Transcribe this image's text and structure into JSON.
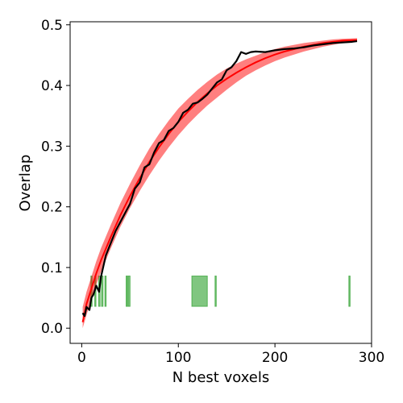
{
  "chart_data": {
    "type": "line",
    "title": "",
    "xlabel": "N best voxels",
    "ylabel": "Overlap",
    "xlim": [
      -12,
      300
    ],
    "ylim": [
      -0.025,
      0.505
    ],
    "xticks": [
      0,
      100,
      200,
      300
    ],
    "yticks": [
      0.0,
      0.1,
      0.2,
      0.3,
      0.4,
      0.5
    ],
    "xtick_labels": [
      "0",
      "100",
      "200",
      "300"
    ],
    "ytick_labels": [
      "0.0",
      "0.1",
      "0.2",
      "0.3",
      "0.4",
      "0.5"
    ],
    "grid": false,
    "legend": null,
    "series": [
      {
        "kind": "band",
        "color": "#ff0000",
        "x": [
          1,
          5,
          10,
          15,
          20,
          30,
          40,
          50,
          60,
          70,
          80,
          90,
          100,
          110,
          120,
          130,
          140,
          150,
          160,
          170,
          180,
          190,
          200,
          210,
          220,
          230,
          240,
          250,
          260,
          270,
          285
        ],
        "mean": [
          0.01,
          0.04,
          0.065,
          0.09,
          0.112,
          0.15,
          0.186,
          0.218,
          0.247,
          0.274,
          0.298,
          0.32,
          0.34,
          0.357,
          0.373,
          0.387,
          0.4,
          0.411,
          0.421,
          0.43,
          0.438,
          0.445,
          0.451,
          0.456,
          0.46,
          0.464,
          0.467,
          0.47,
          0.472,
          0.474,
          0.475
        ],
        "lower": [
          0.0,
          0.022,
          0.047,
          0.072,
          0.093,
          0.131,
          0.167,
          0.198,
          0.226,
          0.252,
          0.276,
          0.298,
          0.318,
          0.336,
          0.352,
          0.367,
          0.38,
          0.393,
          0.405,
          0.416,
          0.425,
          0.433,
          0.44,
          0.446,
          0.451,
          0.456,
          0.46,
          0.464,
          0.467,
          0.47,
          0.472
        ],
        "upper": [
          0.035,
          0.06,
          0.085,
          0.11,
          0.132,
          0.17,
          0.206,
          0.238,
          0.268,
          0.296,
          0.32,
          0.342,
          0.362,
          0.378,
          0.393,
          0.406,
          0.418,
          0.428,
          0.436,
          0.443,
          0.449,
          0.455,
          0.46,
          0.464,
          0.467,
          0.47,
          0.472,
          0.474,
          0.476,
          0.477,
          0.478
        ]
      },
      {
        "kind": "line",
        "color": "#000000",
        "x": [
          1,
          3,
          5,
          8,
          10,
          12,
          15,
          18,
          20,
          25,
          30,
          35,
          40,
          45,
          50,
          55,
          60,
          65,
          70,
          75,
          80,
          85,
          90,
          95,
          100,
          105,
          110,
          115,
          120,
          125,
          130,
          135,
          140,
          145,
          150,
          155,
          160,
          165,
          170,
          175,
          180,
          190,
          200,
          210,
          220,
          230,
          240,
          250,
          260,
          270,
          280,
          285
        ],
        "values": [
          0.025,
          0.02,
          0.035,
          0.03,
          0.05,
          0.055,
          0.07,
          0.06,
          0.085,
          0.12,
          0.14,
          0.16,
          0.175,
          0.19,
          0.205,
          0.23,
          0.24,
          0.265,
          0.27,
          0.29,
          0.305,
          0.31,
          0.325,
          0.33,
          0.34,
          0.355,
          0.36,
          0.37,
          0.372,
          0.378,
          0.385,
          0.395,
          0.405,
          0.41,
          0.425,
          0.43,
          0.44,
          0.455,
          0.452,
          0.455,
          0.456,
          0.455,
          0.458,
          0.46,
          0.461,
          0.463,
          0.466,
          0.468,
          0.47,
          0.471,
          0.472,
          0.473
        ]
      }
    ],
    "bar_segments": {
      "color": "#2ca02c",
      "y_range": [
        0.036,
        0.086
      ],
      "intervals": [
        [
          9.5,
          10.5
        ],
        [
          13.5,
          14.5
        ],
        [
          17.5,
          19
        ],
        [
          20.5,
          22
        ],
        [
          24,
          25
        ],
        [
          46,
          47
        ],
        [
          48,
          50
        ],
        [
          114,
          130
        ],
        [
          138,
          139
        ],
        [
          276.5,
          277.5
        ]
      ]
    }
  }
}
